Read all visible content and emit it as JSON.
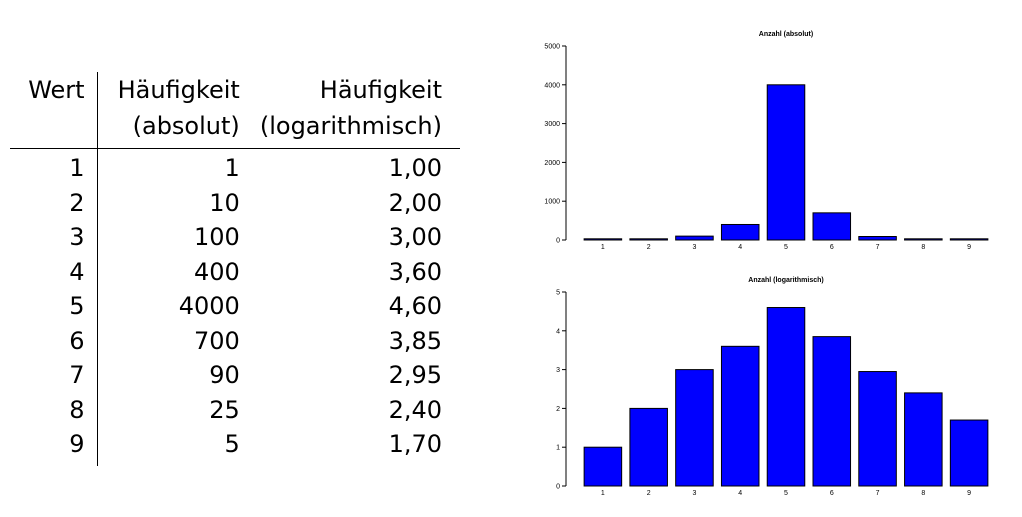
{
  "table": {
    "headers": {
      "wert": "Wert",
      "abs_line1": "Häufigkeit",
      "abs_line2": "(absolut)",
      "log_line1": "Häufigkeit",
      "log_line2": "(logarithmisch)"
    },
    "rows": [
      {
        "wert": "1",
        "abs": "1",
        "log": "1,00"
      },
      {
        "wert": "2",
        "abs": "10",
        "log": "2,00"
      },
      {
        "wert": "3",
        "abs": "100",
        "log": "3,00"
      },
      {
        "wert": "4",
        "abs": "400",
        "log": "3,60"
      },
      {
        "wert": "5",
        "abs": "4000",
        "log": "4,60"
      },
      {
        "wert": "6",
        "abs": "700",
        "log": "3,85"
      },
      {
        "wert": "7",
        "abs": "90",
        "log": "2,95"
      },
      {
        "wert": "8",
        "abs": "25",
        "log": "2,40"
      },
      {
        "wert": "9",
        "abs": "5",
        "log": "1,70"
      }
    ]
  },
  "chart_data": [
    {
      "type": "bar",
      "title": "Anzahl (absolut)",
      "xlabel": "",
      "ylabel": "",
      "categories": [
        "1",
        "2",
        "3",
        "4",
        "5",
        "6",
        "7",
        "8",
        "9"
      ],
      "values": [
        1,
        10,
        100,
        400,
        4000,
        700,
        90,
        25,
        5
      ],
      "ylim": [
        0,
        5000
      ],
      "yticks": [
        "0",
        "1000",
        "2000",
        "3000",
        "4000",
        "5000"
      ],
      "bar_color": "#0000ff",
      "grid": false
    },
    {
      "type": "bar",
      "title": "Anzahl (logarithmisch)",
      "xlabel": "",
      "ylabel": "",
      "categories": [
        "1",
        "2",
        "3",
        "4",
        "5",
        "6",
        "7",
        "8",
        "9"
      ],
      "values": [
        1.0,
        2.0,
        3.0,
        3.6,
        4.6,
        3.85,
        2.95,
        2.4,
        1.7
      ],
      "ylim": [
        0,
        5
      ],
      "yticks": [
        "0",
        "1",
        "2",
        "3",
        "4",
        "5"
      ],
      "bar_color": "#0000ff",
      "grid": false
    }
  ]
}
